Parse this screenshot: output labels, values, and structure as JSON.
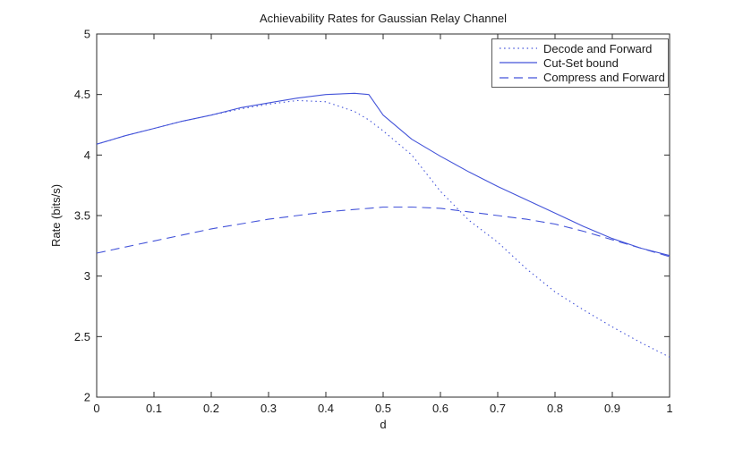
{
  "colors": {
    "line": "#4353d9",
    "axis": "#2b2b2b",
    "text": "#1a1a1a",
    "legend_border": "#5a5a5a",
    "background": "#ffffff"
  },
  "chart_data": {
    "type": "line",
    "title": "Achievability Rates for Gaussian Relay Channel",
    "xlabel": "d",
    "ylabel": "Rate (bits/s)",
    "xlim": [
      0,
      1
    ],
    "ylim": [
      2,
      5
    ],
    "grid": false,
    "legend_position": "top-right",
    "xticks": [
      0,
      0.1,
      0.2,
      0.3,
      0.4,
      0.5,
      0.6,
      0.7,
      0.8,
      0.9,
      1
    ],
    "xtick_labels": [
      "0",
      "0.1",
      "0.2",
      "0.3",
      "0.4",
      "0.5",
      "0.6",
      "0.7",
      "0.8",
      "0.9",
      "1"
    ],
    "yticks": [
      2,
      2.5,
      3,
      3.5,
      4,
      4.5,
      5
    ],
    "ytick_labels": [
      "2",
      "2.5",
      "3",
      "3.5",
      "4",
      "4.5",
      "5"
    ],
    "x": [
      0,
      0.05,
      0.1,
      0.15,
      0.2,
      0.25,
      0.3,
      0.35,
      0.4,
      0.45,
      0.475,
      0.5,
      0.55,
      0.6,
      0.65,
      0.7,
      0.75,
      0.8,
      0.85,
      0.9,
      0.95,
      1.0
    ],
    "series": [
      {
        "name": "Decode and Forward",
        "style": "dotted",
        "values": [
          4.09,
          4.16,
          4.22,
          4.28,
          4.33,
          4.38,
          4.42,
          4.45,
          4.44,
          4.36,
          4.29,
          4.2,
          4.0,
          3.7,
          3.46,
          3.28,
          3.06,
          2.87,
          2.72,
          2.58,
          2.45,
          2.33
        ]
      },
      {
        "name": "Cut-Set bound",
        "style": "solid",
        "values": [
          4.09,
          4.16,
          4.22,
          4.28,
          4.33,
          4.39,
          4.43,
          4.47,
          4.5,
          4.51,
          4.5,
          4.33,
          4.13,
          3.99,
          3.86,
          3.74,
          3.63,
          3.52,
          3.41,
          3.31,
          3.23,
          3.17
        ]
      },
      {
        "name": "Compress and Forward",
        "style": "dashed",
        "values": [
          3.19,
          3.24,
          3.29,
          3.34,
          3.39,
          3.43,
          3.47,
          3.5,
          3.53,
          3.55,
          3.56,
          3.57,
          3.57,
          3.56,
          3.53,
          3.5,
          3.47,
          3.43,
          3.37,
          3.3,
          3.23,
          3.16
        ]
      }
    ]
  }
}
